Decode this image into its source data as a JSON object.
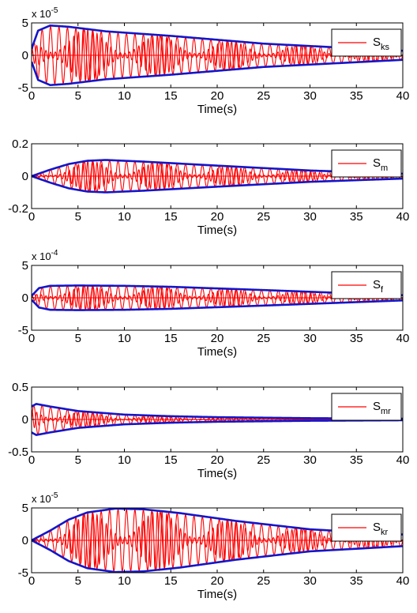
{
  "colors": {
    "signal": "#ff0000",
    "envelope": "#1515c8",
    "axes": "#000000",
    "background": "#ffffff"
  },
  "chart_data": [
    {
      "type": "line",
      "xlabel": "Time(s)",
      "xlim": [
        0,
        40
      ],
      "xticks": [
        "0",
        "5",
        "10",
        "15",
        "20",
        "25",
        "30",
        "35",
        "40"
      ],
      "ylim": [
        -5,
        5
      ],
      "yticks": [
        "-5",
        "0",
        "5"
      ],
      "exponent": {
        "base": "x 10",
        "power": "-5"
      },
      "legend": {
        "base": "S",
        "sub": "ks",
        "placement": "right"
      },
      "grid": false,
      "envelope": {
        "t": [
          0,
          0.7,
          2,
          4,
          8,
          15,
          25,
          40
        ],
        "amp": [
          1.0,
          3.8,
          4.6,
          4.4,
          3.7,
          3.0,
          1.8,
          0.7
        ]
      },
      "oscillation": {
        "freq_hz": [
          1.1,
          2.0
        ],
        "decay_end": 0.7
      }
    },
    {
      "type": "line",
      "xlabel": "Time(s)",
      "xlim": [
        0,
        40
      ],
      "xticks": [
        "0",
        "5",
        "10",
        "15",
        "20",
        "25",
        "30",
        "35",
        "40"
      ],
      "ylim": [
        -0.2,
        0.2
      ],
      "yticks": [
        "-0.2",
        "0",
        "0.2"
      ],
      "legend": {
        "base": "S",
        "sub": "m",
        "placement": "right"
      },
      "grid": false,
      "envelope": {
        "t": [
          0,
          2,
          4,
          6,
          8,
          12,
          20,
          30,
          40
        ],
        "amp": [
          0.0,
          0.04,
          0.075,
          0.095,
          0.1,
          0.09,
          0.065,
          0.035,
          0.015
        ]
      },
      "oscillation": {
        "freq_hz": [
          1.1,
          2.0
        ],
        "decay_end": 0.15
      }
    },
    {
      "type": "line",
      "xlabel": "Time(s)",
      "xlim": [
        0,
        40
      ],
      "xticks": [
        "0",
        "5",
        "10",
        "15",
        "20",
        "25",
        "30",
        "35",
        "40"
      ],
      "ylim": [
        -5,
        5
      ],
      "yticks": [
        "-5",
        "0",
        "5"
      ],
      "exponent": {
        "base": "x 10",
        "power": "-4"
      },
      "legend": {
        "base": "S",
        "sub": "f",
        "placement": "right"
      },
      "grid": false,
      "envelope": {
        "t": [
          0,
          0.8,
          2,
          5,
          10,
          15,
          25,
          40
        ],
        "amp": [
          0.3,
          1.5,
          1.85,
          1.9,
          1.85,
          1.7,
          1.2,
          0.4
        ]
      },
      "oscillation": {
        "freq_hz": [
          1.1,
          2.0
        ],
        "decay_end": 0.2
      }
    },
    {
      "type": "line",
      "xlabel": "Time(s)",
      "xlim": [
        0,
        40
      ],
      "xticks": [
        "0",
        "5",
        "10",
        "15",
        "20",
        "25",
        "30",
        "35",
        "40"
      ],
      "ylim": [
        -0.5,
        0.5
      ],
      "yticks": [
        "-0.5",
        "0",
        "0.5"
      ],
      "legend": {
        "base": "S",
        "sub": "mr",
        "placement": "right"
      },
      "grid": false,
      "envelope": {
        "t": [
          0,
          0.5,
          2,
          5,
          10,
          15,
          20,
          30,
          40
        ],
        "amp": [
          0.2,
          0.24,
          0.2,
          0.13,
          0.075,
          0.05,
          0.035,
          0.02,
          0.012
        ]
      },
      "oscillation": {
        "freq_hz": [
          1.1,
          2.0
        ],
        "decay_end": 0.3
      }
    },
    {
      "type": "line",
      "xlabel": "Time(s)",
      "xlim": [
        0,
        40
      ],
      "xticks": [
        "0",
        "5",
        "10",
        "15",
        "20",
        "25",
        "30",
        "35",
        "40"
      ],
      "ylim": [
        -5,
        5
      ],
      "yticks": [
        "-5",
        "0",
        "5"
      ],
      "exponent": {
        "base": "x 10",
        "power": "-5"
      },
      "legend": {
        "base": "S",
        "sub": "kr",
        "placement": "right"
      },
      "grid": false,
      "envelope": {
        "t": [
          0,
          2,
          4,
          6,
          9,
          12,
          16,
          22,
          30,
          40
        ],
        "amp": [
          0.0,
          1.5,
          3.2,
          4.3,
          4.9,
          4.8,
          4.2,
          3.0,
          1.7,
          0.9
        ]
      },
      "oscillation": {
        "freq_hz": [
          1.1,
          2.0
        ],
        "decay_end": 0.15
      }
    }
  ]
}
